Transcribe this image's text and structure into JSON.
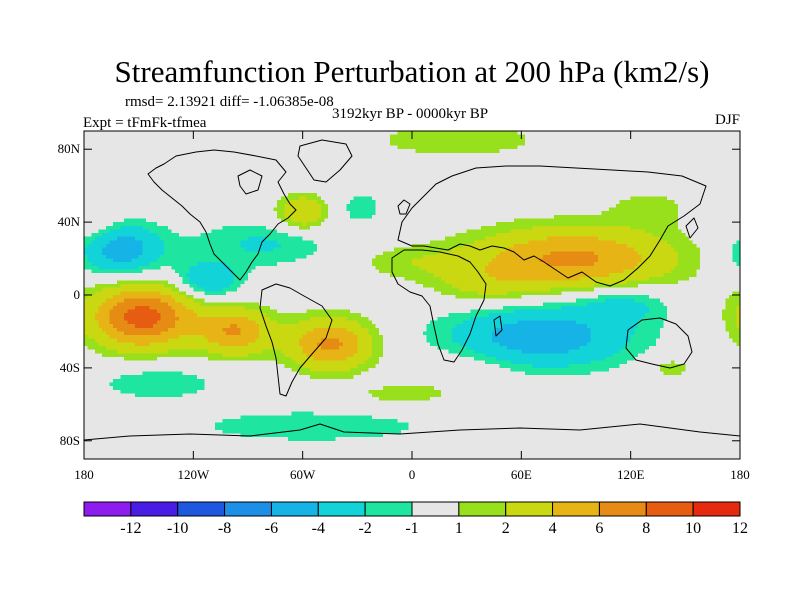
{
  "title": "Streamfunction Perturbation at 200 hPa (km2/s)",
  "stats": "rmsd= 2.13921 diff= -1.06385e-08",
  "experiment": "Expt = tFmFk-tfmea",
  "period": "3192kyr BP - 0000kyr BP",
  "season": "DJF",
  "lat_ticks": [
    "80N",
    "40N",
    "0",
    "40S",
    "80S"
  ],
  "lon_ticks": [
    "180",
    "120W",
    "60W",
    "0",
    "60E",
    "120E",
    "180"
  ],
  "colorbar": {
    "labels": [
      "-12",
      "-10",
      "-8",
      "-6",
      "-4",
      "-2",
      "-1",
      "1",
      "2",
      "4",
      "6",
      "8",
      "10",
      "12"
    ],
    "colors": [
      "#8f1cef",
      "#4a1de6",
      "#1e57e0",
      "#1e8fe6",
      "#16b4e6",
      "#12d4d8",
      "#1ee6a0",
      "#e6e6e6",
      "#99e01c",
      "#c9d810",
      "#e6b414",
      "#e68c14",
      "#e65c10",
      "#e62a10"
    ]
  },
  "chart_data": {
    "type": "heatmap",
    "title": "Streamfunction Perturbation at 200 hPa (km2/s)",
    "variable": "Streamfunction Perturbation",
    "units": "km2/s",
    "level": "200 hPa",
    "xlabel": "",
    "ylabel": "",
    "xlim": [
      -180,
      180
    ],
    "ylim": [
      -90,
      90
    ],
    "x_ticks": [
      -180,
      -120,
      -60,
      0,
      60,
      120,
      180
    ],
    "y_ticks": [
      80,
      40,
      0,
      -40,
      -80
    ],
    "contour_levels": [
      -12,
      -10,
      -8,
      -6,
      -4,
      -2,
      -1,
      1,
      2,
      4,
      6,
      8,
      10,
      12
    ],
    "anomalies": [
      {
        "lon": -160,
        "lat": 25,
        "sx": 16,
        "sy": 10,
        "amp": -5.5
      },
      {
        "lon": -112,
        "lat": 8,
        "sx": 12,
        "sy": 7,
        "amp": -4
      },
      {
        "lon": -82,
        "lat": 28,
        "sx": 28,
        "sy": 9,
        "amp": -2.2
      },
      {
        "lon": -28,
        "lat": 48,
        "sx": 10,
        "sy": 7,
        "amp": -1.5
      },
      {
        "lon": -55,
        "lat": -72,
        "sx": 60,
        "sy": 8,
        "amp": -1.5
      },
      {
        "lon": -140,
        "lat": -48,
        "sx": 25,
        "sy": 7,
        "amp": -1.8
      },
      {
        "lon": 70,
        "lat": -23,
        "sx": 35,
        "sy": 12,
        "amp": -5.5
      },
      {
        "lon": 115,
        "lat": -5,
        "sx": 18,
        "sy": 7,
        "amp": -2.5
      },
      {
        "lon": 25,
        "lat": 85,
        "sx": 35,
        "sy": 7,
        "amp": 1.8
      },
      {
        "lon": -148,
        "lat": -12,
        "sx": 20,
        "sy": 12,
        "amp": 9
      },
      {
        "lon": -97,
        "lat": -20,
        "sx": 14,
        "sy": 9,
        "amp": 6
      },
      {
        "lon": -45,
        "lat": -27,
        "sx": 16,
        "sy": 10,
        "amp": 6.5
      },
      {
        "lon": -60,
        "lat": 45,
        "sx": 10,
        "sy": 7,
        "amp": 4
      },
      {
        "lon": 88,
        "lat": 20,
        "sx": 38,
        "sy": 12,
        "amp": 6.5
      },
      {
        "lon": 40,
        "lat": 5,
        "sx": 20,
        "sy": 8,
        "amp": 2
      },
      {
        "lon": 0,
        "lat": 18,
        "sx": 25,
        "sy": 7,
        "amp": 1.5
      },
      {
        "lon": 130,
        "lat": 48,
        "sx": 15,
        "sy": 7,
        "amp": 1.5
      },
      {
        "lon": 142,
        "lat": -40,
        "sx": 10,
        "sy": 5,
        "amp": 1.6
      },
      {
        "lon": -5,
        "lat": -55,
        "sx": 22,
        "sy": 5,
        "amp": 1.5
      },
      {
        "lon": -175,
        "lat": 38,
        "sx": 12,
        "sy": 8,
        "amp": 1.5
      },
      {
        "lon": 30,
        "lat": -40,
        "sx": 20,
        "sy": 8,
        "amp": 1.2
      }
    ],
    "legend": "bottom colorbar"
  }
}
